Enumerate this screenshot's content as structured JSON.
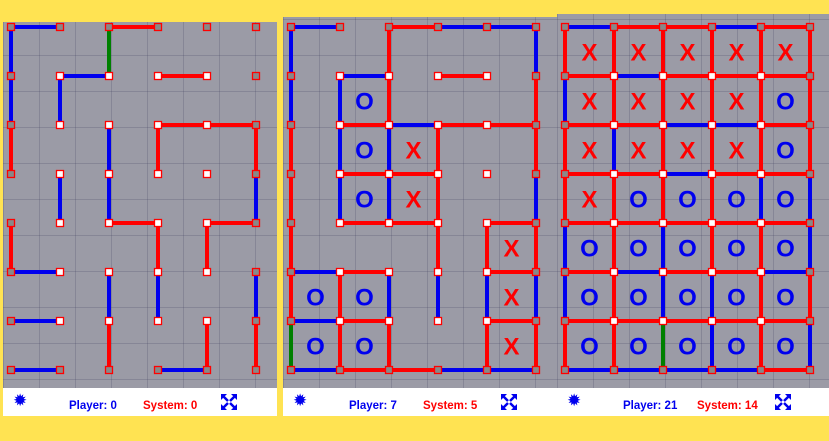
{
  "colors": {
    "player": "#0000ee",
    "system": "#ff0000",
    "last_move": "#008000",
    "background": "#FFE352"
  },
  "icons": {
    "settings": "gear-icon",
    "fullscreen": "fullscreen-icon"
  },
  "panels": [
    {
      "player_label": "Player: 0",
      "system_label": "System: 0",
      "h": [
        "B-R--",
        "-B-R-",
        "---RR",
        "-----",
        "--R-R",
        "B----",
        "B----",
        "B--B-"
      ],
      "v": [
        "B-G---",
        "BB----",
        "R-BR-R",
        "-BB--B",
        "R--RR-",
        "--BB-B",
        "--R-RR"
      ],
      "boxes": [
        "-----",
        "-----",
        "-----",
        "-----",
        "-----",
        "-----",
        "-----"
      ]
    },
    {
      "player_label": "Player: 7",
      "system_label": "System: 5",
      "h": [
        "B-RBB",
        "-B-R-",
        "-RBRR",
        "-RR--",
        "-RR-R",
        "BR--R",
        "BR--R",
        "BRRBB"
      ],
      "v": [
        "B-R--B",
        "BBR--R",
        "RBBR-R",
        "RBBR-B",
        "R--RRR",
        "RRBBBB",
        "GRR-RR"
      ],
      "boxes": [
        "-----",
        "-O---",
        "-OX--",
        "-OX--",
        "----X",
        "OO--X",
        "OO--X"
      ]
    },
    {
      "player_label": "Player: 21",
      "system_label": "System: 14",
      "h": [
        "BRRBR",
        "RBRRR",
        "RRBBR",
        "RRBRR",
        "RRRRR",
        "RBRRB",
        "RRRRR",
        "BBBBR"
      ],
      "v": [
        "RRRRRR",
        "BRRRRR",
        "RBRRRR",
        "RRRRBB",
        "BRBRRB",
        "BRBBRR",
        "RRGBRB"
      ],
      "boxes": [
        "XXXXX",
        "XXXXO",
        "XXXXO",
        "XOOOO",
        "OOOOO",
        "OOOOO",
        "OOOOO"
      ]
    }
  ]
}
